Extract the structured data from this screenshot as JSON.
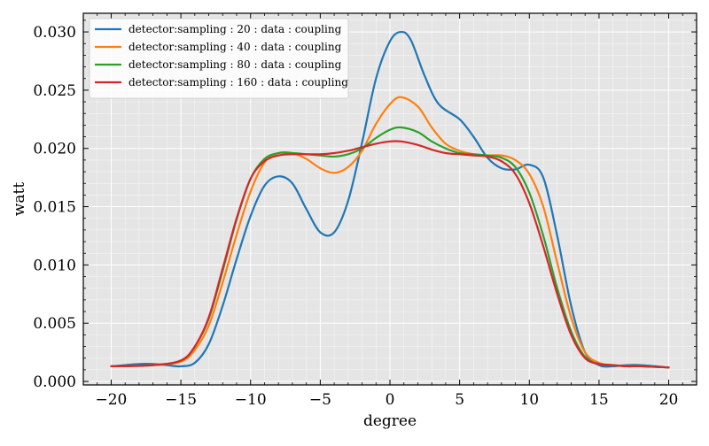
{
  "chart_data": {
    "type": "line",
    "title": "",
    "xlabel": "degree",
    "ylabel": "watt",
    "xlim": [
      -22,
      22
    ],
    "ylim": [
      -0.0003,
      0.0316
    ],
    "xticks": [
      -20,
      -15,
      -10,
      -5,
      0,
      5,
      10,
      15,
      20
    ],
    "xtick_labels": [
      "−20",
      "−15",
      "−10",
      "−5",
      "0",
      "5",
      "10",
      "15",
      "20"
    ],
    "yticks": [
      0.0,
      0.005,
      0.01,
      0.015,
      0.02,
      0.025,
      0.03
    ],
    "ytick_labels": [
      "0.000",
      "0.005",
      "0.010",
      "0.015",
      "0.020",
      "0.025",
      "0.030"
    ],
    "grid": true,
    "legend_position": "top-left",
    "series": [
      {
        "name": "detector:sampling : 20 : data : coupling",
        "color": "#1f77b4",
        "x": [
          -20,
          -18,
          -17,
          -16,
          -15,
          -14,
          -13,
          -12,
          -11,
          -10,
          -9,
          -8,
          -7,
          -6,
          -5,
          -4,
          -3,
          -2,
          -1,
          0,
          0.8,
          1.5,
          2.5,
          3.5,
          5,
          6,
          7,
          8,
          9,
          10,
          11,
          12,
          13,
          14,
          15,
          16,
          17,
          18,
          20
        ],
        "y": [
          0.0013,
          0.0015,
          0.0015,
          0.0014,
          0.0013,
          0.0016,
          0.0032,
          0.0065,
          0.0105,
          0.0142,
          0.0168,
          0.0176,
          0.017,
          0.0148,
          0.0128,
          0.0128,
          0.0155,
          0.0205,
          0.026,
          0.0292,
          0.03,
          0.0293,
          0.0262,
          0.0238,
          0.0225,
          0.021,
          0.0192,
          0.0183,
          0.0182,
          0.0186,
          0.0175,
          0.0125,
          0.0065,
          0.0025,
          0.0014,
          0.0013,
          0.0014,
          0.0014,
          0.0012
        ]
      },
      {
        "name": "detector:sampling : 40 : data : coupling",
        "color": "#ff7f0e",
        "x": [
          -20,
          -17,
          -15,
          -14,
          -13,
          -12,
          -11,
          -10,
          -9,
          -8,
          -7,
          -6,
          -5,
          -4,
          -3,
          -2,
          -1,
          0,
          0.8,
          2,
          3,
          4,
          5,
          6,
          7,
          8,
          9,
          10,
          11,
          12,
          13,
          14,
          15,
          16,
          17,
          18,
          20
        ],
        "y": [
          0.0013,
          0.0014,
          0.0017,
          0.0027,
          0.0048,
          0.0085,
          0.0126,
          0.0163,
          0.0188,
          0.0196,
          0.0196,
          0.0191,
          0.0183,
          0.0179,
          0.0184,
          0.0198,
          0.0221,
          0.0238,
          0.0244,
          0.0236,
          0.0218,
          0.0204,
          0.0198,
          0.0195,
          0.0194,
          0.0194,
          0.019,
          0.0178,
          0.015,
          0.0102,
          0.0055,
          0.0025,
          0.0016,
          0.0014,
          0.0013,
          0.0013,
          0.0012
        ]
      },
      {
        "name": "detector:sampling : 80 : data : coupling",
        "color": "#2ca02c",
        "x": [
          -20,
          -17,
          -15,
          -14,
          -13,
          -12,
          -11,
          -10,
          -9,
          -8,
          -7,
          -6,
          -5,
          -4,
          -3,
          -2,
          -1,
          0,
          0.8,
          2,
          3,
          4,
          5,
          6,
          7,
          8,
          9,
          10,
          11,
          12,
          13,
          14,
          15,
          16,
          17,
          18,
          20
        ],
        "y": [
          0.0013,
          0.0014,
          0.0018,
          0.003,
          0.0054,
          0.0095,
          0.0139,
          0.0174,
          0.0191,
          0.0196,
          0.0196,
          0.0195,
          0.0194,
          0.0193,
          0.0195,
          0.02,
          0.0209,
          0.0216,
          0.0218,
          0.0214,
          0.0206,
          0.02,
          0.0196,
          0.0195,
          0.0194,
          0.0192,
          0.0184,
          0.0162,
          0.0125,
          0.008,
          0.0043,
          0.0021,
          0.0015,
          0.0014,
          0.0013,
          0.0013,
          0.0012
        ]
      },
      {
        "name": "detector:sampling : 160 : data : coupling",
        "color": "#d62728",
        "x": [
          -20,
          -17,
          -15,
          -14,
          -13,
          -12,
          -11,
          -10,
          -9,
          -8,
          -7,
          -6,
          -5,
          -4,
          -3,
          -2,
          -1,
          0,
          0.8,
          2,
          3,
          4,
          5,
          6,
          7,
          8,
          9,
          10,
          11,
          12,
          13,
          14,
          15,
          16,
          17,
          18,
          20
        ],
        "y": [
          0.0013,
          0.0014,
          0.0018,
          0.003,
          0.0055,
          0.0097,
          0.014,
          0.0174,
          0.0189,
          0.0194,
          0.0195,
          0.0195,
          0.0195,
          0.0196,
          0.0198,
          0.0201,
          0.0204,
          0.0206,
          0.0206,
          0.0203,
          0.0199,
          0.0196,
          0.0195,
          0.0194,
          0.0193,
          0.0189,
          0.0178,
          0.0153,
          0.0116,
          0.0075,
          0.004,
          0.002,
          0.0015,
          0.0014,
          0.0013,
          0.0013,
          0.0012
        ]
      }
    ]
  }
}
